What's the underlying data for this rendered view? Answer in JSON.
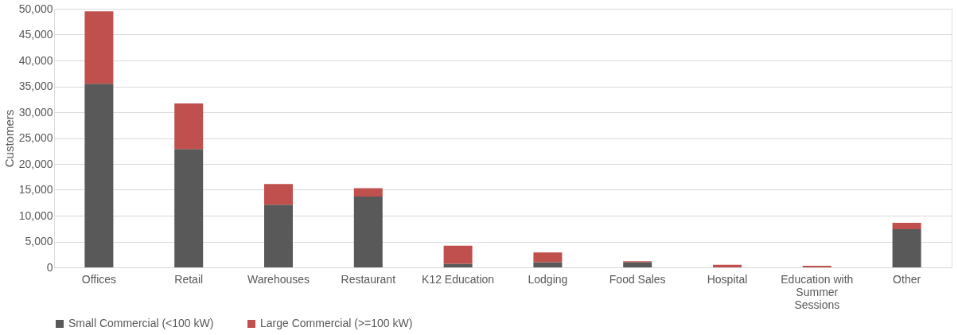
{
  "chart_data": {
    "type": "bar",
    "stacked": true,
    "ylabel": "Customers",
    "categories": [
      "Offices",
      "Retail",
      "Warehouses",
      "Restaurant",
      "K12 Education",
      "Lodging",
      "Food Sales",
      "Hospital",
      "Education with Summer Sessions",
      "Other"
    ],
    "series": [
      {
        "name": "Small Commercial (<100 kW)",
        "color": "#595959",
        "values": [
          35500,
          22900,
          12100,
          13700,
          700,
          1000,
          1000,
          0,
          0,
          7400
        ]
      },
      {
        "name": "Large Commercial (>=100 kW)",
        "color": "#c0504d",
        "values": [
          14000,
          8800,
          4000,
          1600,
          3500,
          1900,
          200,
          500,
          300,
          1200
        ]
      }
    ],
    "ylim": [
      0,
      50000
    ],
    "yticks": [
      0,
      {
        "value": 5000,
        "label": "5,000"
      },
      {
        "value": 10000,
        "label": "10,000"
      },
      {
        "value": 15000,
        "label": "15,000"
      },
      {
        "value": 20000,
        "label": "20,000"
      },
      {
        "value": 25000,
        "label": "25,000"
      },
      {
        "value": 30000,
        "label": "30,000"
      },
      {
        "value": 35000,
        "label": "35,000"
      },
      {
        "value": 40000,
        "label": "40,000"
      },
      {
        "value": 45000,
        "label": "45,000"
      },
      {
        "value": 50000,
        "label": "50,000"
      }
    ],
    "grid": "y",
    "legend": "bottom"
  }
}
